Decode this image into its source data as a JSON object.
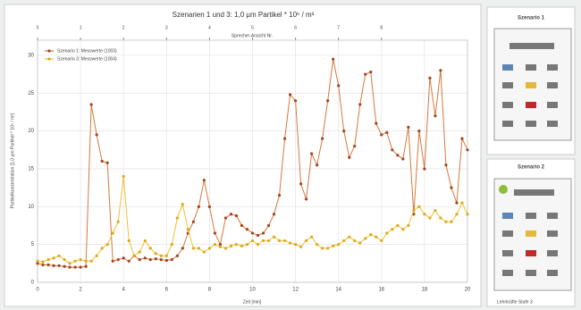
{
  "chart_data": {
    "type": "line",
    "title": "Szenarien 1 und 3: 1,0 µm Partikel * 10⁶ / m³",
    "x_label": "Zeit [min]",
    "y_label": "Partikelkonzentration [1,0 µm Partikel * 10⁶ / m³]",
    "top_axis_label": "Sprecher-Ansicht Nr.",
    "top_ticks": [
      {
        "value": 0,
        "label": "0"
      },
      {
        "value": 2,
        "label": "1"
      },
      {
        "value": 4,
        "label": "2"
      },
      {
        "value": 6,
        "label": "3"
      },
      {
        "value": 8,
        "label": "4"
      },
      {
        "value": 10,
        "label": "5"
      },
      {
        "value": 12,
        "label": "6"
      },
      {
        "value": 14,
        "label": "7"
      },
      {
        "value": 16,
        "label": "8"
      }
    ],
    "x": [
      0,
      0.25,
      0.5,
      0.75,
      1,
      1.25,
      1.5,
      1.75,
      2,
      2.25,
      2.5,
      2.75,
      3,
      3.25,
      3.5,
      3.75,
      4,
      4.25,
      4.5,
      4.75,
      5,
      5.25,
      5.5,
      5.75,
      6,
      6.25,
      6.5,
      6.75,
      7,
      7.25,
      7.5,
      7.75,
      8,
      8.25,
      8.5,
      8.75,
      9,
      9.25,
      9.5,
      9.75,
      10,
      10.25,
      10.5,
      10.75,
      11,
      11.25,
      11.5,
      11.75,
      12,
      12.25,
      12.5,
      12.75,
      13,
      13.25,
      13.5,
      13.75,
      14,
      14.25,
      14.5,
      14.75,
      15,
      15.25,
      15.5,
      15.75,
      16,
      16.25,
      16.5,
      16.75,
      17,
      17.25,
      17.5,
      17.75,
      18,
      18.25,
      18.5,
      18.75,
      19,
      19.25,
      19.5,
      19.75,
      20
    ],
    "series": [
      {
        "name": "Szenario 1: Messwerte (1003)",
        "color": "#d4783c",
        "marker_color": "#a8421c",
        "values": [
          2.5,
          2.3,
          2.3,
          2.2,
          2.2,
          2.1,
          2.0,
          2.0,
          2.0,
          2.1,
          23.5,
          19.5,
          16,
          15.8,
          2.8,
          3.0,
          3.2,
          2.8,
          3.5,
          3.0,
          3.2,
          3.0,
          3.1,
          3.0,
          2.9,
          3.0,
          3.5,
          4.5,
          6.5,
          8,
          10,
          13.5,
          10,
          6.5,
          5,
          8.5,
          9,
          8.8,
          7.5,
          7.0,
          6.5,
          6.2,
          6.5,
          7.5,
          9,
          11.5,
          19,
          24.8,
          24,
          13,
          11,
          17,
          15.5,
          19,
          24,
          29.5,
          26,
          20,
          16.5,
          18,
          23.5,
          27.5,
          27.8,
          21,
          19.5,
          19.8,
          17.5,
          16.8,
          16.3,
          20.5,
          9,
          20,
          15,
          27,
          22,
          28,
          15.5,
          12.5,
          10.5,
          19,
          17.5
        ]
      },
      {
        "name": "Szenario 3: Messwerte (1004)",
        "color": "#f0c030",
        "marker_color": "#e0a818",
        "values": [
          2.8,
          2.7,
          3.0,
          3.2,
          3.5,
          3.0,
          2.5,
          2.8,
          3.0,
          2.8,
          2.8,
          3.5,
          4.5,
          5,
          6.5,
          8,
          14,
          5.5,
          3.5,
          4,
          5.5,
          4.5,
          3.8,
          3.5,
          3.5,
          5,
          8.5,
          10.3,
          7,
          4.5,
          4.5,
          4,
          4.5,
          5,
          4.7,
          4.5,
          4.8,
          5,
          4.8,
          5,
          5.5,
          5,
          5.5,
          5.5,
          6,
          5.5,
          5.5,
          5.2,
          5,
          4.7,
          5.5,
          6,
          5,
          4.5,
          4.5,
          4.8,
          5,
          5.5,
          6,
          5.5,
          5.2,
          5.8,
          6.3,
          6,
          5.5,
          6.5,
          7,
          7.5,
          7,
          7.5,
          9.5,
          10,
          9,
          8.5,
          9.5,
          8.5,
          8,
          8,
          9,
          10.5,
          9
        ]
      }
    ],
    "xlim": [
      0,
      20
    ],
    "xticks": [
      0,
      2,
      4,
      6,
      8,
      10,
      12,
      14,
      16,
      18,
      20
    ],
    "ylim": [
      0,
      32
    ],
    "yticks": [
      0,
      5,
      10,
      15,
      20,
      25,
      30
    ],
    "grid": true,
    "legend": "upper left"
  },
  "side_panel": {
    "scenario_a": "Szenario 1",
    "scenario_b": "Szenario 2",
    "footer": "Lehrkräfte Stufe 3"
  }
}
